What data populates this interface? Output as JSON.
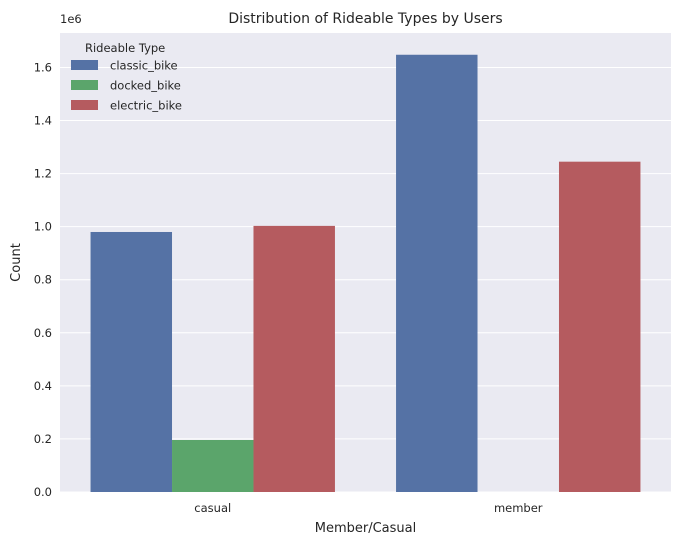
{
  "chart_data": {
    "type": "bar",
    "title": "Distribution of Rideable Types by Users",
    "xlabel": "Member/Casual",
    "ylabel": "Count",
    "offset_text": "1e6",
    "categories": [
      "casual",
      "member"
    ],
    "series": [
      {
        "name": "classic_bike",
        "values": [
          0.98,
          1.648
        ],
        "color": "#5572a5"
      },
      {
        "name": "docked_bike",
        "values": [
          0.196,
          0.0
        ],
        "color": "#5ba56b"
      },
      {
        "name": "electric_bike",
        "values": [
          1.003,
          1.245
        ],
        "color": "#b55b5f"
      }
    ],
    "ylim": [
      0,
      1.73
    ],
    "yticks": [
      "0.0",
      "0.2",
      "0.4",
      "0.6",
      "0.8",
      "1.0",
      "1.2",
      "1.4",
      "1.6"
    ],
    "grid": true,
    "legend": {
      "title": "Rideable Type",
      "placement": "top-left"
    },
    "colors": {
      "plot_background": "#eaeaf2",
      "grid": "#ffffff"
    }
  }
}
